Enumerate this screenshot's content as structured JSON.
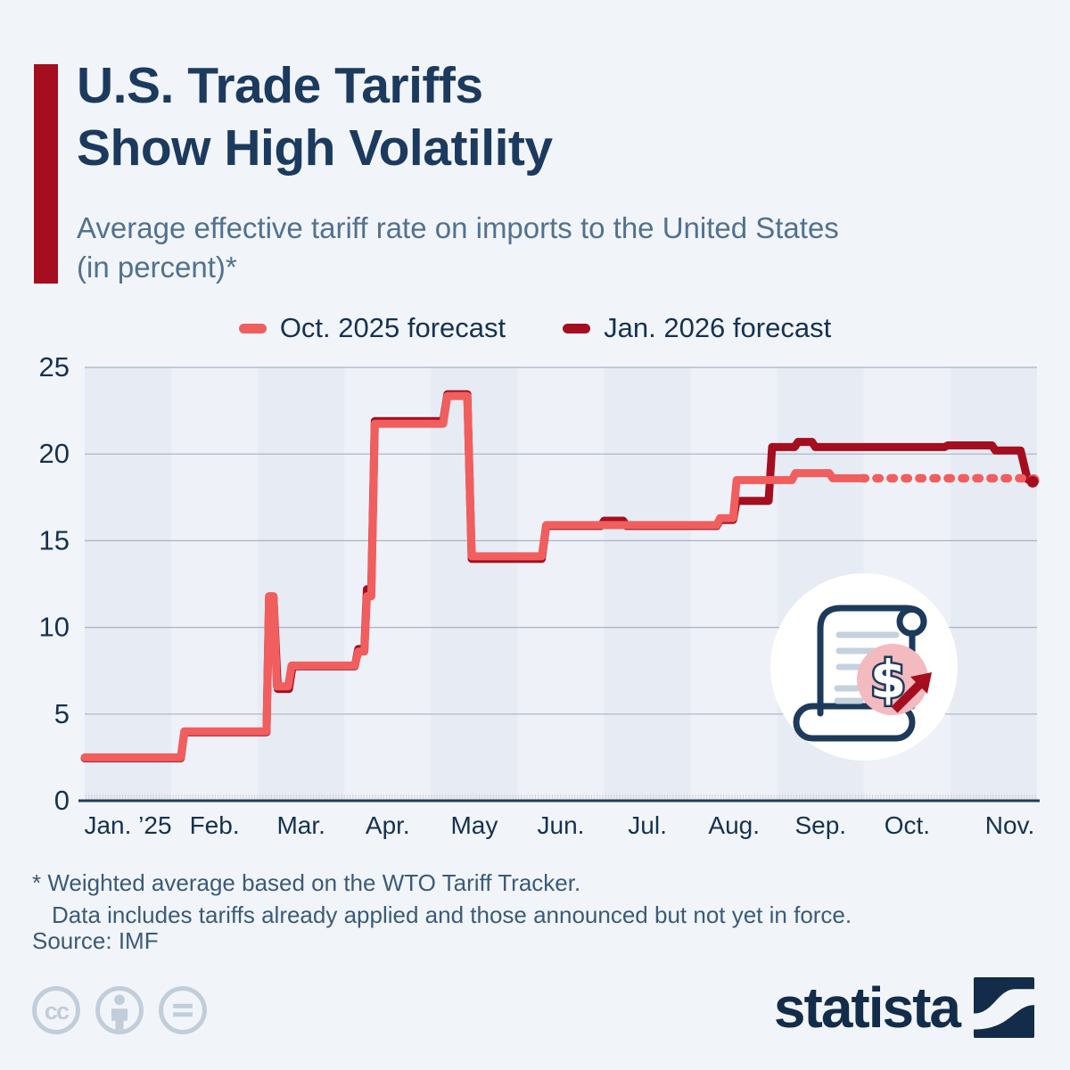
{
  "header": {
    "title_line1": "U.S. Trade Tariffs",
    "title_line2": "Show High Volatility",
    "subtitle_line1": "Average effective tariff rate on imports to the United States",
    "subtitle_line2": "(in percent)*"
  },
  "legend": [
    {
      "label": "Oct. 2025 forecast",
      "color": "#f15e5e"
    },
    {
      "label": "Jan. 2026 forecast",
      "color": "#a50e1e"
    }
  ],
  "chart_data": {
    "type": "line",
    "title": "Average effective tariff rate on imports to the United States (in percent)",
    "x_unit": "months since Jan 1 2025 (fractional month index)",
    "x_axis": {
      "labels": [
        "Jan. ’25",
        "Feb.",
        "Mar.",
        "Apr.",
        "May",
        "Jun.",
        "Jul.",
        "Aug.",
        "Sep.",
        "Oct.",
        "Nov."
      ]
    },
    "y_axis": {
      "ticks": [
        0,
        5,
        10,
        15,
        20,
        25
      ],
      "range": [
        0,
        25
      ]
    },
    "grid": "horizontal",
    "legend_position": "top",
    "band_colors": {
      "odd_month": "#e6ebf4",
      "even_month": "#eef1f8"
    },
    "colors": {
      "gridline": "#a8b3c2",
      "baseline": "#203c59",
      "axis_text": "#16314f",
      "day_ticks": "#dcc6cb"
    },
    "series": [
      {
        "name": "Oct. 2025 forecast",
        "color": "#f15e5e",
        "line_style": "solid until Oct 1, dotted forecast afterwards",
        "points": [
          [
            0,
            2.5
          ],
          [
            1.11,
            2.5
          ],
          [
            1.15,
            4.0
          ],
          [
            2.1,
            4.0
          ],
          [
            2.13,
            11.8
          ],
          [
            2.18,
            11.8
          ],
          [
            2.22,
            6.6
          ],
          [
            2.35,
            6.6
          ],
          [
            2.39,
            7.8
          ],
          [
            3.12,
            7.8
          ],
          [
            3.16,
            8.6
          ],
          [
            3.23,
            8.6
          ],
          [
            3.26,
            11.8
          ],
          [
            3.31,
            11.8
          ],
          [
            3.35,
            21.75
          ],
          [
            4.14,
            21.75
          ],
          [
            4.19,
            23.35
          ],
          [
            4.42,
            23.35
          ],
          [
            4.47,
            14.1
          ],
          [
            5.28,
            14.1
          ],
          [
            5.33,
            15.9
          ],
          [
            7.3,
            15.9
          ],
          [
            7.34,
            16.3
          ],
          [
            7.49,
            16.3
          ],
          [
            7.53,
            18.5
          ],
          [
            8.17,
            18.5
          ],
          [
            8.21,
            18.9
          ],
          [
            8.6,
            18.9
          ],
          [
            8.64,
            18.6
          ],
          [
            8.98,
            18.6
          ]
        ],
        "forecast_points": [
          [
            8.98,
            18.6
          ],
          [
            10.9,
            18.6
          ],
          [
            10.96,
            18.5
          ]
        ]
      },
      {
        "name": "Jan. 2026 forecast",
        "color": "#a50e1e",
        "line_style": "solid",
        "points": [
          [
            0,
            2.45
          ],
          [
            1.11,
            2.45
          ],
          [
            1.15,
            3.95
          ],
          [
            2.1,
            3.95
          ],
          [
            2.13,
            11.75
          ],
          [
            2.18,
            11.75
          ],
          [
            2.23,
            6.45
          ],
          [
            2.36,
            6.45
          ],
          [
            2.4,
            7.75
          ],
          [
            3.12,
            7.75
          ],
          [
            3.16,
            8.75
          ],
          [
            3.23,
            8.75
          ],
          [
            3.26,
            12.2
          ],
          [
            3.31,
            12.2
          ],
          [
            3.35,
            21.9
          ],
          [
            4.14,
            21.9
          ],
          [
            4.19,
            23.45
          ],
          [
            4.42,
            23.45
          ],
          [
            4.47,
            13.95
          ],
          [
            5.28,
            13.95
          ],
          [
            5.33,
            15.85
          ],
          [
            5.96,
            15.85
          ],
          [
            6.0,
            16.15
          ],
          [
            6.22,
            16.15
          ],
          [
            6.26,
            15.85
          ],
          [
            7.3,
            15.85
          ],
          [
            7.34,
            16.2
          ],
          [
            7.49,
            16.2
          ],
          [
            7.53,
            17.3
          ],
          [
            7.9,
            17.3
          ],
          [
            7.94,
            20.4
          ],
          [
            8.2,
            20.4
          ],
          [
            8.24,
            20.7
          ],
          [
            8.4,
            20.7
          ],
          [
            8.44,
            20.4
          ],
          [
            9.93,
            20.4
          ],
          [
            9.97,
            20.5
          ],
          [
            10.48,
            20.5
          ],
          [
            10.52,
            20.2
          ],
          [
            10.81,
            20.2
          ],
          [
            10.89,
            18.55
          ],
          [
            10.95,
            18.4
          ]
        ]
      }
    ]
  },
  "footnotes": {
    "line1": "* Weighted average based on the WTO Tariff Tracker.",
    "line2": "Data includes tariffs already applied and those announced but not yet in force.",
    "source": "Source: IMF"
  },
  "branding": {
    "wordmark": "statista",
    "logo_navy": "#132c49",
    "cc_icons": [
      "cc",
      "by-person",
      "nd-equals"
    ],
    "cc_color": "#c2cdda"
  },
  "icon": {
    "name": "tariff-scroll-dollar-rising",
    "outline_color": "#1d3a5a",
    "pink_badge": "#f3bac0",
    "arrow_color": "#a50e1e"
  }
}
